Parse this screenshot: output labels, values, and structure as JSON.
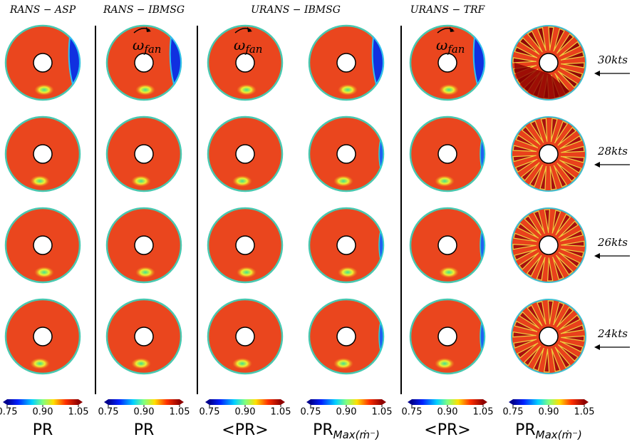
{
  "columns": [
    {
      "header": "RANS − ASP",
      "label": "PR"
    },
    {
      "header": "RANS − IBMSG",
      "label": "PR",
      "rotation": true
    },
    {
      "header": "URANS − IBMSG",
      "label": "<PR>",
      "rotation": true
    },
    {
      "label": "PR",
      "label_subscript": "Max(ṁ⁻)"
    },
    {
      "header": "URANS − TRF",
      "label": "<PR>",
      "rotation": true
    },
    {
      "label": "PR",
      "label_subscript": "Max(ṁ⁻)"
    }
  ],
  "rows": [
    "30kts",
    "28kts",
    "26kts",
    "24kts"
  ],
  "rotation": {
    "symbol": "ω",
    "subscript": "fan"
  },
  "colorbar": {
    "lim": [
      0.75,
      1.05
    ],
    "ticks": [
      0.75,
      {
        "value": 0.9,
        "label": "0.90"
      },
      1.05
    ]
  }
}
